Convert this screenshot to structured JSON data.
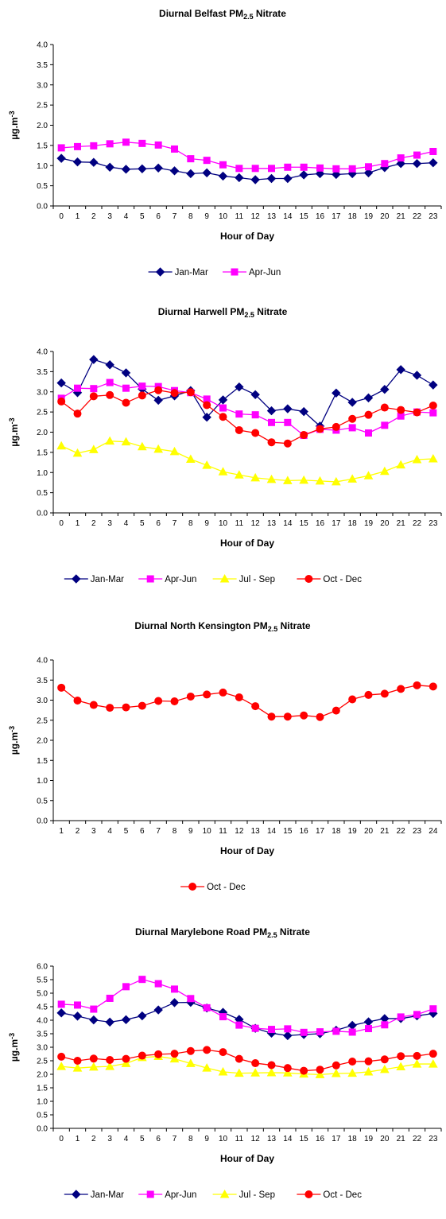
{
  "chart_data": [
    {
      "type": "line",
      "title": "Diurnal Belfast PM",
      "title_sub": "2.5",
      "title_suffix": " Nitrate",
      "xlabel": "Hour of Day",
      "ylabel": "µg.m",
      "ylabel_sup": "-3",
      "x": [
        0,
        1,
        2,
        3,
        4,
        5,
        6,
        7,
        8,
        9,
        10,
        11,
        12,
        13,
        14,
        15,
        16,
        17,
        18,
        19,
        20,
        21,
        22,
        23
      ],
      "ylim": [
        0,
        4.0
      ],
      "yticks": [
        "0.0",
        "0.5",
        "1.0",
        "1.5",
        "2.0",
        "2.5",
        "3.0",
        "3.5",
        "4.0"
      ],
      "grid": false,
      "legend": "bottom",
      "series": [
        {
          "name": "Jan-Mar",
          "color": "#000080",
          "marker": "diamond",
          "values": [
            1.18,
            1.09,
            1.08,
            0.96,
            0.91,
            0.92,
            0.94,
            0.87,
            0.8,
            0.82,
            0.74,
            0.7,
            0.65,
            0.68,
            0.68,
            0.77,
            0.8,
            0.78,
            0.8,
            0.82,
            0.95,
            1.05,
            1.05,
            1.07
          ]
        },
        {
          "name": "Apr-Jun",
          "color": "#ff00ff",
          "marker": "square",
          "values": [
            1.44,
            1.47,
            1.49,
            1.54,
            1.58,
            1.55,
            1.51,
            1.41,
            1.17,
            1.13,
            1.02,
            0.93,
            0.93,
            0.93,
            0.96,
            0.96,
            0.94,
            0.92,
            0.92,
            0.97,
            1.05,
            1.19,
            1.26,
            1.35
          ]
        }
      ]
    },
    {
      "type": "line",
      "title": "Diurnal Harwell PM",
      "title_sub": "2.5",
      "title_suffix": " Nitrate",
      "xlabel": "Hour of Day",
      "ylabel": "µg.m",
      "ylabel_sup": "-3",
      "x": [
        0,
        1,
        2,
        3,
        4,
        5,
        6,
        7,
        8,
        9,
        10,
        11,
        12,
        13,
        14,
        15,
        16,
        17,
        18,
        19,
        20,
        21,
        22,
        23
      ],
      "ylim": [
        0,
        4.0
      ],
      "yticks": [
        "0.0",
        "0.5",
        "1.0",
        "1.5",
        "2.0",
        "2.5",
        "3.0",
        "3.5",
        "4.0"
      ],
      "grid": false,
      "legend": "bottom",
      "series": [
        {
          "name": "Jan-Mar",
          "color": "#000080",
          "marker": "diamond",
          "values": [
            3.22,
            2.98,
            3.8,
            3.67,
            3.47,
            3.07,
            2.79,
            2.9,
            3.03,
            2.37,
            2.8,
            3.12,
            2.93,
            2.53,
            2.58,
            2.51,
            2.15,
            2.97,
            2.74,
            2.85,
            3.06,
            3.55,
            3.41,
            3.17
          ]
        },
        {
          "name": "Apr-Jun",
          "color": "#ff00ff",
          "marker": "square",
          "values": [
            2.84,
            3.09,
            3.08,
            3.23,
            3.09,
            3.14,
            3.13,
            3.03,
            2.98,
            2.82,
            2.6,
            2.45,
            2.43,
            2.24,
            2.24,
            1.92,
            2.07,
            2.05,
            2.11,
            1.98,
            2.17,
            2.4,
            2.5,
            2.48
          ]
        },
        {
          "name": "Jul - Sep",
          "color": "#ffff00",
          "marker": "triangle",
          "values": [
            1.66,
            1.48,
            1.57,
            1.78,
            1.76,
            1.64,
            1.58,
            1.52,
            1.33,
            1.18,
            1.02,
            0.94,
            0.87,
            0.83,
            0.8,
            0.81,
            0.79,
            0.77,
            0.84,
            0.92,
            1.03,
            1.19,
            1.32,
            1.34
          ]
        },
        {
          "name": "Oct - Dec",
          "color": "#ff0000",
          "marker": "circle",
          "values": [
            2.76,
            2.46,
            2.89,
            2.92,
            2.73,
            2.91,
            3.04,
            2.97,
            2.99,
            2.67,
            2.38,
            2.05,
            1.98,
            1.75,
            1.72,
            1.93,
            2.08,
            2.13,
            2.33,
            2.43,
            2.61,
            2.55,
            2.49,
            2.66
          ]
        }
      ]
    },
    {
      "type": "line",
      "title": "Diurnal North Kensington PM",
      "title_sub": "2.5",
      "title_suffix": " Nitrate",
      "xlabel": "Hour of Day",
      "ylabel": "µg.m",
      "ylabel_sup": "-3",
      "x": [
        1,
        2,
        3,
        4,
        5,
        6,
        7,
        8,
        9,
        10,
        11,
        12,
        13,
        14,
        15,
        16,
        17,
        18,
        19,
        20,
        21,
        22,
        23,
        24
      ],
      "ylim": [
        0,
        4.0
      ],
      "yticks": [
        "0.0",
        "0.5",
        "1.0",
        "1.5",
        "2.0",
        "2.5",
        "3.0",
        "3.5",
        "4.0"
      ],
      "grid": false,
      "legend": "bottom",
      "series": [
        {
          "name": "Oct - Dec",
          "color": "#ff0000",
          "marker": "circle",
          "values": [
            3.31,
            2.99,
            2.88,
            2.81,
            2.82,
            2.86,
            2.98,
            2.97,
            3.09,
            3.14,
            3.19,
            3.07,
            2.85,
            2.59,
            2.59,
            2.62,
            2.58,
            2.74,
            3.02,
            3.13,
            3.16,
            3.28,
            3.37,
            3.34
          ]
        }
      ]
    },
    {
      "type": "line",
      "title": "Diurnal Marylebone Road PM",
      "title_sub": "2.5",
      "title_suffix": " Nitrate",
      "xlabel": "Hour of Day",
      "ylabel": "µg.m",
      "ylabel_sup": "-3",
      "x": [
        0,
        1,
        2,
        3,
        4,
        5,
        6,
        7,
        8,
        9,
        10,
        11,
        12,
        13,
        14,
        15,
        16,
        17,
        18,
        19,
        20,
        21,
        22,
        23
      ],
      "ylim": [
        0,
        6.0
      ],
      "yticks": [
        "0.0",
        "0.5",
        "1.0",
        "1.5",
        "2.0",
        "2.5",
        "3.0",
        "3.5",
        "4.0",
        "4.5",
        "5.0",
        "5.5",
        "6.0"
      ],
      "grid": false,
      "legend": "bottom",
      "series": [
        {
          "name": "Jan-Mar",
          "color": "#000080",
          "marker": "diamond",
          "values": [
            4.27,
            4.15,
            4.01,
            3.93,
            4.02,
            4.16,
            4.38,
            4.65,
            4.66,
            4.45,
            4.29,
            4.03,
            3.7,
            3.52,
            3.43,
            3.47,
            3.5,
            3.63,
            3.81,
            3.94,
            4.06,
            4.06,
            4.16,
            4.25
          ]
        },
        {
          "name": "Apr-Jun",
          "color": "#ff00ff",
          "marker": "square",
          "values": [
            4.59,
            4.56,
            4.41,
            4.81,
            5.24,
            5.51,
            5.35,
            5.15,
            4.8,
            4.46,
            4.13,
            3.82,
            3.7,
            3.66,
            3.68,
            3.55,
            3.57,
            3.59,
            3.56,
            3.69,
            3.83,
            4.12,
            4.21,
            4.42
          ]
        },
        {
          "name": "Jul - Sep",
          "color": "#ffff00",
          "marker": "triangle",
          "values": [
            2.29,
            2.23,
            2.27,
            2.29,
            2.4,
            2.62,
            2.66,
            2.57,
            2.4,
            2.23,
            2.09,
            2.04,
            2.05,
            2.06,
            2.05,
            2.01,
            1.99,
            2.03,
            2.04,
            2.09,
            2.18,
            2.28,
            2.38,
            2.38
          ]
        },
        {
          "name": "Oct - Dec",
          "color": "#ff0000",
          "marker": "circle",
          "values": [
            2.65,
            2.5,
            2.58,
            2.53,
            2.57,
            2.69,
            2.74,
            2.76,
            2.86,
            2.9,
            2.82,
            2.57,
            2.41,
            2.34,
            2.23,
            2.13,
            2.17,
            2.33,
            2.47,
            2.48,
            2.55,
            2.67,
            2.68,
            2.76
          ]
        }
      ]
    }
  ]
}
